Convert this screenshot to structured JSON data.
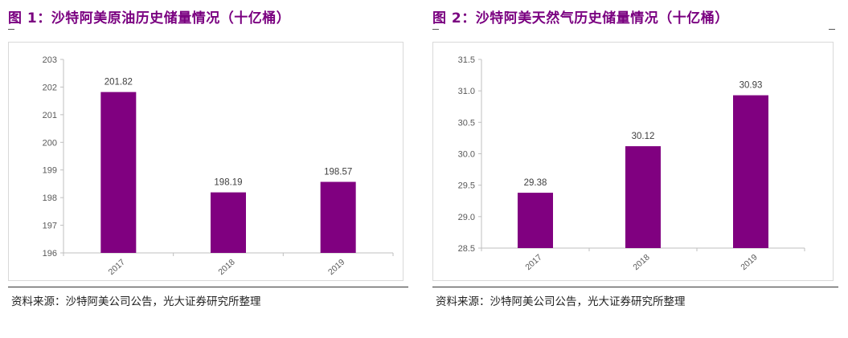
{
  "colors": {
    "bar": "#800080",
    "title": "#7a0080"
  },
  "charts": [
    {
      "title": "图 1：沙特阿美原油历史储量情况（十亿桶）",
      "source": "资料来源：沙特阿美公司公告，光大证券研究所整理",
      "chart_data": {
        "type": "bar",
        "categories": [
          "2017",
          "2018",
          "2019"
        ],
        "values": [
          201.82,
          198.19,
          198.57
        ],
        "value_labels": [
          "201.82",
          "198.19",
          "198.57"
        ],
        "yticks": [
          "196",
          "197",
          "198",
          "199",
          "200",
          "201",
          "202",
          "203"
        ],
        "ylim": [
          196,
          203
        ],
        "xlabel": "",
        "ylabel": ""
      }
    },
    {
      "title": "图 2：沙特阿美天然气历史储量情况（十亿桶）",
      "source": "资料来源：沙特阿美公司公告，光大证券研究所整理",
      "chart_data": {
        "type": "bar",
        "categories": [
          "2017",
          "2018",
          "2019"
        ],
        "values": [
          29.38,
          30.12,
          30.93
        ],
        "value_labels": [
          "29.38",
          "30.12",
          "30.93"
        ],
        "yticks": [
          "28.5",
          "29.0",
          "29.5",
          "30.0",
          "30.5",
          "31.0",
          "31.5"
        ],
        "ylim": [
          28.5,
          31.5
        ],
        "xlabel": "",
        "ylabel": ""
      }
    }
  ]
}
